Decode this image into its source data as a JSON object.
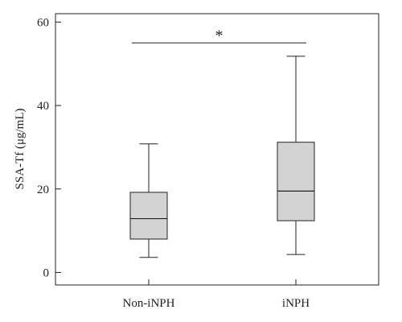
{
  "chart_data": {
    "type": "box",
    "ylabel": "SSA-Tf (μg/mL)",
    "ylim": [
      -3,
      62
    ],
    "yticks": [
      0,
      20,
      40,
      60
    ],
    "grid": false,
    "categories": [
      "Non-iNPH",
      "iNPH"
    ],
    "boxes": [
      {
        "category": "Non-iNPH",
        "whisker_low": 3.6,
        "q1": 8,
        "median": 12.9,
        "q3": 19.2,
        "whisker_high": 30.8
      },
      {
        "category": "iNPH",
        "whisker_low": 4.3,
        "q1": 12.4,
        "median": 19.5,
        "q3": 31.2,
        "whisker_high": 51.8
      }
    ],
    "significance": {
      "between": [
        "Non-iNPH",
        "iNPH"
      ],
      "y": 55,
      "label": "*"
    },
    "colors": {
      "box_fill": "#d3d3d3",
      "stroke": "#222222"
    }
  }
}
